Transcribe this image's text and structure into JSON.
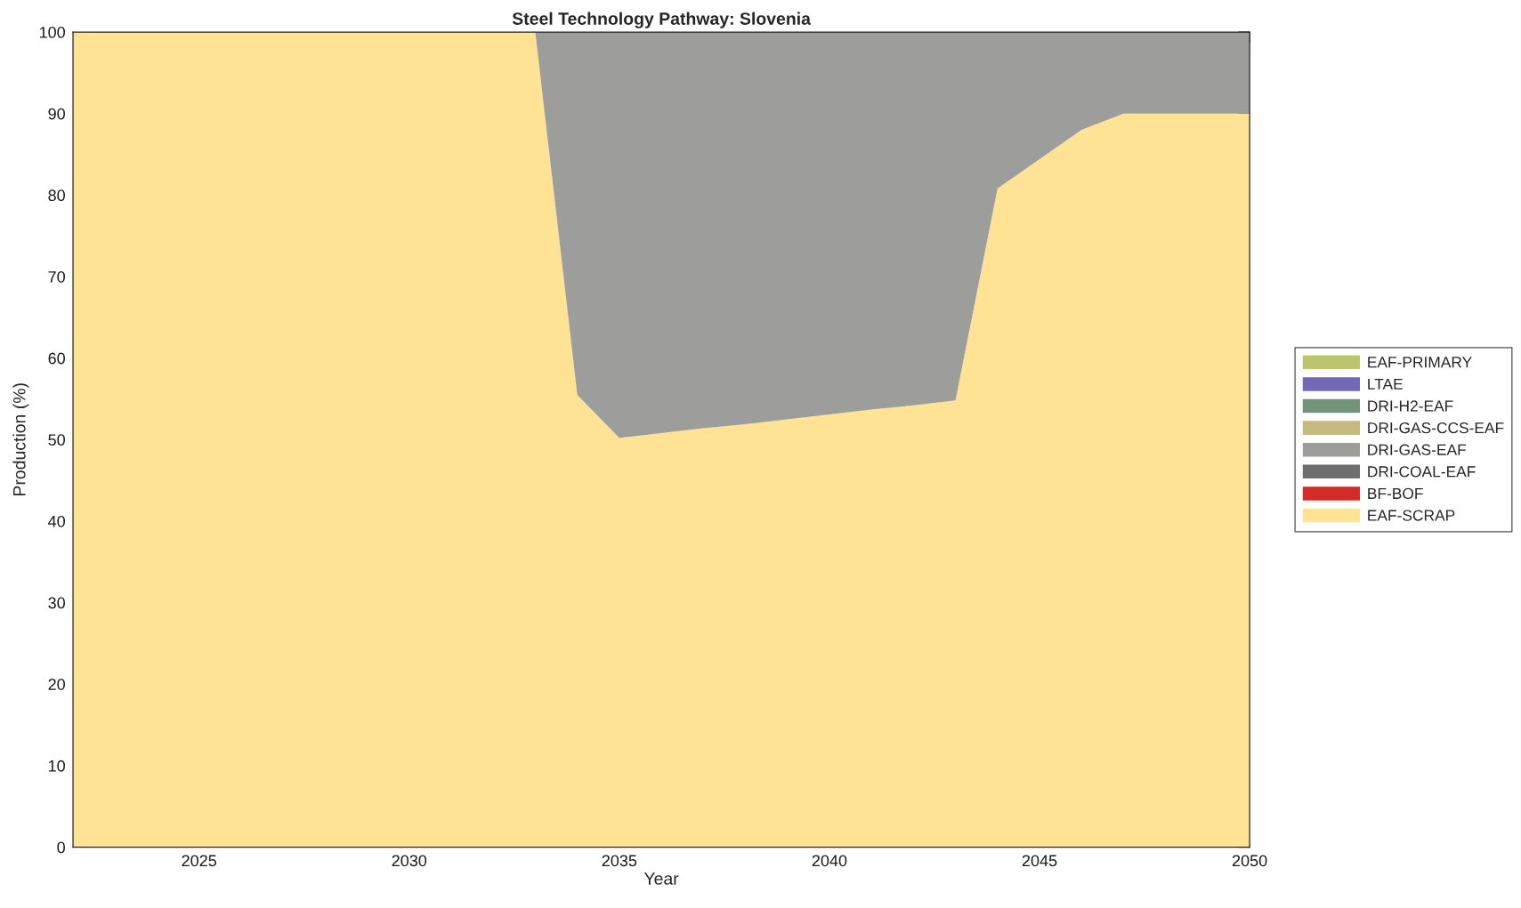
{
  "chart_data": {
    "type": "area",
    "stacked": true,
    "title": "Steel Technology Pathway: Slovenia",
    "xlabel": "Year",
    "ylabel": "Production (%)",
    "x": [
      2022,
      2023,
      2024,
      2025,
      2026,
      2027,
      2028,
      2029,
      2030,
      2031,
      2032,
      2033,
      2034,
      2035,
      2036,
      2037,
      2038,
      2039,
      2040,
      2041,
      2042,
      2043,
      2044,
      2045,
      2046,
      2047,
      2048,
      2049,
      2050
    ],
    "xlim": [
      2022,
      2050
    ],
    "xticks": [
      2025,
      2030,
      2035,
      2040,
      2045,
      2050
    ],
    "ylim": [
      0,
      100
    ],
    "yticks": [
      0,
      10,
      20,
      30,
      40,
      50,
      60,
      70,
      80,
      90,
      100
    ],
    "grid": false,
    "legend": "right",
    "series": [
      {
        "name": "EAF-SCRAP",
        "color": "#fee394",
        "values": [
          100,
          100,
          100,
          100,
          100,
          100,
          100,
          100,
          100,
          100,
          100,
          100,
          55.5,
          50.2,
          50.8,
          51.4,
          51.9,
          52.5,
          53.1,
          53.7,
          54.2,
          54.8,
          80.8,
          84.4,
          88.0,
          90,
          90,
          90,
          90
        ]
      },
      {
        "name": "BF-BOF",
        "color": "#d32c26",
        "values": [
          null,
          null,
          null,
          null,
          null,
          null,
          null,
          null,
          null,
          null,
          null,
          null,
          null,
          null,
          null,
          null,
          null,
          null,
          null,
          null,
          null,
          null,
          null,
          null,
          null,
          null,
          null,
          null,
          null
        ]
      },
      {
        "name": "DRI-COAL-EAF",
        "color": "#6e6e6e",
        "values": [
          null,
          null,
          null,
          null,
          null,
          null,
          null,
          null,
          null,
          null,
          null,
          null,
          null,
          null,
          null,
          null,
          null,
          null,
          null,
          null,
          null,
          null,
          null,
          null,
          null,
          null,
          null,
          null,
          null
        ]
      },
      {
        "name": "DRI-GAS-EAF",
        "color": "#9d9d9b",
        "values": [
          0,
          0,
          0,
          0,
          0,
          0,
          0,
          0,
          0,
          0,
          0,
          0,
          44.5,
          49.8,
          49.2,
          48.6,
          48.1,
          47.5,
          46.9,
          46.3,
          45.8,
          45.2,
          19.2,
          15.6,
          12.0,
          10,
          10,
          10,
          10
        ]
      },
      {
        "name": "DRI-GAS-CCS-EAF",
        "color": "#c6bb7f",
        "values": [
          null,
          null,
          null,
          null,
          null,
          null,
          null,
          null,
          null,
          null,
          null,
          null,
          null,
          null,
          null,
          null,
          null,
          null,
          null,
          null,
          null,
          null,
          null,
          null,
          null,
          null,
          null,
          null,
          null
        ]
      },
      {
        "name": "DRI-H2-EAF",
        "color": "#72957a",
        "values": [
          null,
          null,
          null,
          null,
          null,
          null,
          null,
          null,
          null,
          null,
          null,
          null,
          null,
          null,
          null,
          null,
          null,
          null,
          null,
          null,
          null,
          null,
          null,
          null,
          null,
          null,
          null,
          null,
          null
        ]
      },
      {
        "name": "LTAE",
        "color": "#7368b8",
        "values": [
          null,
          null,
          null,
          null,
          null,
          null,
          null,
          null,
          null,
          null,
          null,
          null,
          null,
          null,
          null,
          null,
          null,
          null,
          null,
          null,
          null,
          null,
          null,
          null,
          null,
          null,
          null,
          null,
          null
        ]
      },
      {
        "name": "EAF-PRIMARY",
        "color": "#bcc46c",
        "values": [
          null,
          null,
          null,
          null,
          null,
          null,
          null,
          null,
          null,
          null,
          null,
          null,
          null,
          null,
          null,
          null,
          null,
          null,
          null,
          null,
          null,
          null,
          null,
          null,
          null,
          null,
          null,
          null,
          null
        ]
      }
    ]
  }
}
